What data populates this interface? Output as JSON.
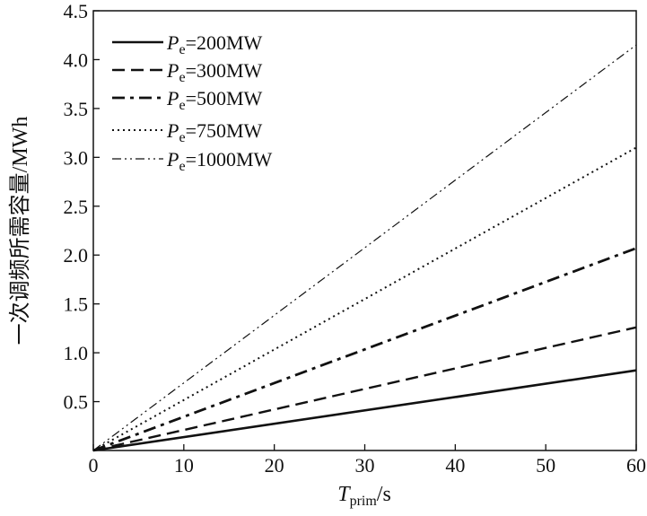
{
  "chart_data": {
    "type": "line",
    "title": "",
    "xlabel_main": "T",
    "xlabel_sub": "prim",
    "xlabel_unit": "/s",
    "ylabel": "一次调频所需容量/MWh",
    "xlim": [
      0,
      60
    ],
    "ylim": [
      0,
      4.5
    ],
    "xticks": [
      "0",
      "10",
      "20",
      "30",
      "40",
      "50",
      "60"
    ],
    "yticks": [
      "0.5",
      "1.0",
      "1.5",
      "2.0",
      "2.5",
      "3.0",
      "3.5",
      "4.0",
      "4.5"
    ],
    "grid": false,
    "legend_placement": "top-left",
    "legend_prefix": "P",
    "legend_sub": "e",
    "series": [
      {
        "name": "=200MW",
        "style": "solid",
        "x": [
          0,
          60
        ],
        "y": [
          0,
          0.82
        ]
      },
      {
        "name": "=300MW",
        "style": "dashed",
        "x": [
          0,
          60
        ],
        "y": [
          0,
          1.26
        ]
      },
      {
        "name": "=500MW",
        "style": "dashdot",
        "x": [
          0,
          60
        ],
        "y": [
          0,
          2.07
        ]
      },
      {
        "name": "=750MW",
        "style": "dotted",
        "x": [
          0,
          60
        ],
        "y": [
          0,
          3.1
        ]
      },
      {
        "name": "=1000MW",
        "style": "dashdotdot",
        "x": [
          0,
          60
        ],
        "y": [
          0,
          4.15
        ]
      }
    ]
  }
}
